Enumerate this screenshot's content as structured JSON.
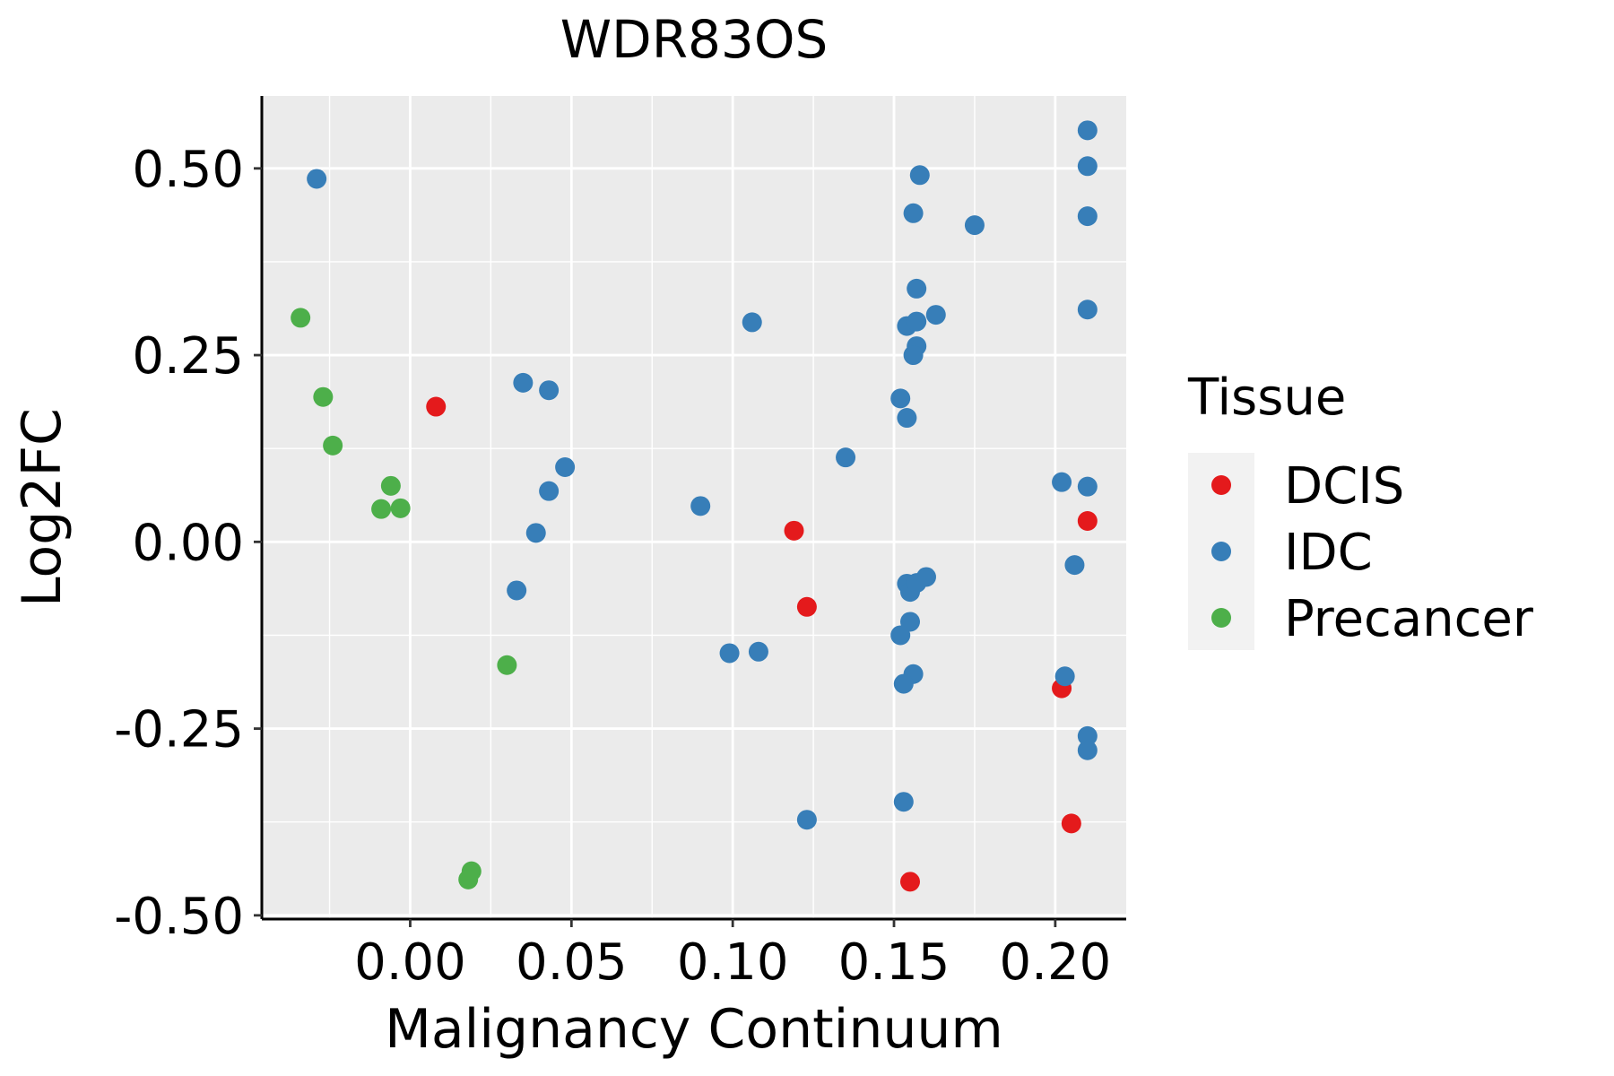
{
  "chart_data": {
    "type": "scatter",
    "title": "WDR83OS",
    "xlabel": "Malignancy Continuum",
    "ylabel": "Log2FC",
    "xlim": [
      -0.046,
      0.222
    ],
    "ylim": [
      -0.505,
      0.597
    ],
    "x_ticks": [
      0.0,
      0.05,
      0.1,
      0.15,
      0.2
    ],
    "x_tick_labels": [
      "0.00",
      "0.05",
      "0.10",
      "0.15",
      "0.20"
    ],
    "y_ticks": [
      -0.5,
      -0.25,
      0.0,
      0.25,
      0.5
    ],
    "y_tick_labels": [
      "-0.50",
      "-0.25",
      "0.00",
      "0.25",
      "0.50"
    ],
    "legend": {
      "title": "Tissue",
      "position": "right"
    },
    "series": [
      {
        "name": "DCIS",
        "color": "#E41A1C",
        "points": [
          [
            0.008,
            0.181
          ],
          [
            0.119,
            0.015
          ],
          [
            0.123,
            -0.087
          ],
          [
            0.155,
            -0.455
          ],
          [
            0.202,
            -0.196
          ],
          [
            0.205,
            -0.377
          ],
          [
            0.21,
            0.028
          ]
        ]
      },
      {
        "name": "IDC",
        "color": "#377EB8",
        "points": [
          [
            -0.029,
            0.486
          ],
          [
            0.035,
            0.213
          ],
          [
            0.043,
            0.203
          ],
          [
            0.048,
            0.1
          ],
          [
            0.043,
            0.068
          ],
          [
            0.039,
            0.012
          ],
          [
            0.033,
            -0.065
          ],
          [
            0.09,
            0.048
          ],
          [
            0.106,
            0.294
          ],
          [
            0.099,
            -0.149
          ],
          [
            0.108,
            -0.147
          ],
          [
            0.123,
            -0.372
          ],
          [
            0.135,
            0.113
          ],
          [
            0.152,
            0.192
          ],
          [
            0.154,
            0.166
          ],
          [
            0.154,
            0.289
          ],
          [
            0.157,
            0.295
          ],
          [
            0.158,
            0.491
          ],
          [
            0.156,
            0.44
          ],
          [
            0.157,
            0.339
          ],
          [
            0.157,
            0.262
          ],
          [
            0.156,
            0.25
          ],
          [
            0.163,
            0.304
          ],
          [
            0.175,
            0.424
          ],
          [
            0.154,
            -0.056
          ],
          [
            0.155,
            -0.067
          ],
          [
            0.157,
            -0.055
          ],
          [
            0.16,
            -0.047
          ],
          [
            0.155,
            -0.107
          ],
          [
            0.152,
            -0.125
          ],
          [
            0.156,
            -0.177
          ],
          [
            0.153,
            -0.19
          ],
          [
            0.153,
            -0.348
          ],
          [
            0.202,
            0.08
          ],
          [
            0.206,
            -0.031
          ],
          [
            0.203,
            -0.18
          ],
          [
            0.21,
            0.551
          ],
          [
            0.21,
            0.503
          ],
          [
            0.21,
            0.436
          ],
          [
            0.21,
            0.311
          ],
          [
            0.21,
            0.074
          ],
          [
            0.21,
            -0.26
          ],
          [
            0.21,
            -0.279
          ]
        ]
      },
      {
        "name": "Precancer",
        "color": "#4DAF4A",
        "points": [
          [
            -0.034,
            0.3
          ],
          [
            -0.027,
            0.194
          ],
          [
            -0.024,
            0.129
          ],
          [
            -0.006,
            0.075
          ],
          [
            -0.009,
            0.044
          ],
          [
            -0.003,
            0.045
          ],
          [
            0.03,
            -0.165
          ],
          [
            0.019,
            -0.441
          ],
          [
            0.018,
            -0.452
          ]
        ]
      }
    ]
  }
}
